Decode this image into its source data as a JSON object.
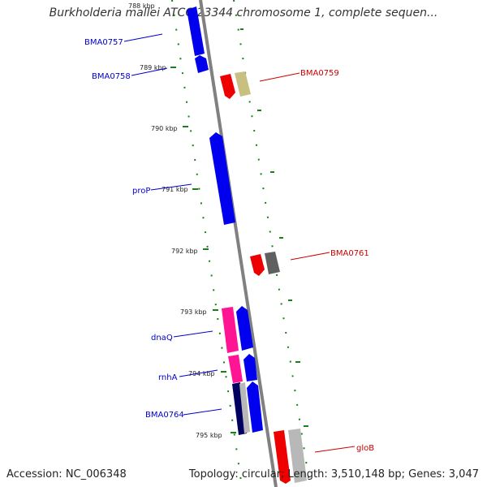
{
  "header": {
    "title": "Burkholderia mallei ATCC 23344 chromosome 1, complete sequen..."
  },
  "footer": {
    "accession": "Accession: NC_006348",
    "summary": "Topology: circular; Length: 3,510,148 bp; Genes: 3,047"
  },
  "ticks": [
    {
      "label": "788 kbp"
    },
    {
      "label": "789 kbp"
    },
    {
      "label": "790 kbp"
    },
    {
      "label": "791 kbp"
    },
    {
      "label": "792 kbp"
    },
    {
      "label": "793 kbp"
    },
    {
      "label": "794 kbp"
    },
    {
      "label": "795 kbp"
    }
  ],
  "gene_labels": {
    "bma0757": "BMA0757",
    "bma0758": "BMA0758",
    "bma0759": "BMA0759",
    "prop": "proP",
    "bma0761": "BMA0761",
    "dnaq": "dnaQ",
    "rnha": "rnhA",
    "bma0764": "BMA0764",
    "glob": "gloB"
  },
  "colors": {
    "forward_label": "#0000cc",
    "reverse_label": "#cc0000",
    "cds_blue": "#0000ee",
    "cds_red": "#ee0000",
    "cds_pink": "#ff1493",
    "cds_olive": "#c8c080",
    "cds_gray": "#606060",
    "cds_navy": "#000060",
    "cds_lightgray": "#b8b8b8",
    "axis": "#808080",
    "tick": "#1a7f1a"
  }
}
